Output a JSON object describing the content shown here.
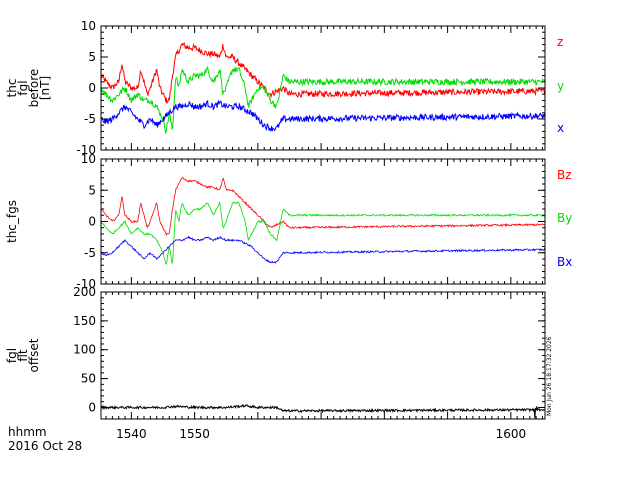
{
  "figure": {
    "x_label_line1": "hhmm",
    "x_label_line2": "2016 Oct 28",
    "timestamp": "Mon Jun 26 18:17:32 2026",
    "x_ticks": [
      "1540",
      "1550",
      "1600"
    ]
  },
  "colors": {
    "x_series": "#0000ff",
    "y_series": "#00dd00",
    "z_series": "#ff0000",
    "offset_series": "#000000",
    "axes": "#000000"
  },
  "chart_data": [
    {
      "type": "line",
      "panel": 1,
      "ylabel_lines": [
        "thc",
        "fgl",
        "before",
        "[nT]"
      ],
      "xlim": [
        1535.2,
        1605.4
      ],
      "ylim": [
        -10,
        10
      ],
      "yticks": [
        -10,
        -5,
        0,
        5,
        10
      ],
      "x_unit": "minutes (hhmm axis)",
      "series": [
        {
          "name": "z",
          "color": "#ff0000",
          "x": [
            1535.2,
            1536,
            1537,
            1538,
            1538.5,
            1539,
            1540,
            1541,
            1541.5,
            1542,
            1542.5,
            1543,
            1544,
            1544.5,
            1545,
            1545.5,
            1546,
            1546.5,
            1547,
            1547.5,
            1548,
            1549,
            1550,
            1551,
            1552,
            1553,
            1554,
            1554.5,
            1555,
            1556,
            1557,
            1558,
            1559,
            1560,
            1561,
            1562,
            1563,
            1564,
            1565,
            1605.4
          ],
          "y": [
            2,
            1,
            0,
            1,
            4,
            1,
            0,
            0,
            3,
            1,
            -1,
            0,
            3,
            0,
            -1,
            -2,
            -2,
            2,
            5,
            6,
            7,
            6.5,
            6.5,
            6,
            5.5,
            5.5,
            5,
            7,
            5,
            5,
            4,
            3,
            2,
            1,
            0,
            -1,
            -0.5,
            0,
            -1,
            -0.5
          ]
        },
        {
          "name": "y",
          "color": "#00dd00",
          "x": [
            1535.2,
            1536,
            1537,
            1538,
            1539,
            1540,
            1541,
            1542,
            1543,
            1544,
            1545,
            1545.5,
            1546,
            1546.5,
            1547,
            1547.5,
            1548,
            1549,
            1550,
            1551,
            1552,
            1553,
            1554,
            1554.5,
            1555,
            1556,
            1557,
            1558,
            1558.5,
            1559,
            1560,
            1561,
            1562,
            1563,
            1564,
            1565,
            1605.4
          ],
          "y": [
            0,
            -1,
            -2,
            -1,
            0,
            -2,
            -1,
            -2,
            -2,
            -3,
            -5,
            -7,
            -4,
            -7,
            2,
            0,
            3,
            1,
            2,
            2,
            3,
            1,
            3,
            -1,
            0,
            3,
            3,
            0,
            -3,
            -2,
            0,
            0,
            -2,
            -3,
            2,
            1,
            1
          ]
        },
        {
          "name": "x",
          "color": "#0000ff",
          "x": [
            1535.2,
            1536,
            1537,
            1538,
            1539,
            1540,
            1541,
            1542,
            1543,
            1544,
            1545,
            1546,
            1547,
            1548,
            1549,
            1550,
            1551,
            1552,
            1553,
            1554,
            1555,
            1556,
            1557,
            1558,
            1559,
            1560,
            1561,
            1562,
            1563,
            1564,
            1565,
            1605.4
          ],
          "y": [
            -5,
            -5.5,
            -5,
            -4,
            -3,
            -4,
            -5,
            -6,
            -5,
            -6,
            -5,
            -4,
            -3,
            -3,
            -2.5,
            -3,
            -3,
            -2.5,
            -3,
            -2.5,
            -3,
            -3,
            -3,
            -3.5,
            -4,
            -5,
            -6,
            -6.5,
            -6.5,
            -5,
            -5,
            -4.5
          ]
        }
      ],
      "legend": [
        "z",
        "y",
        "x"
      ],
      "legend_placement": "right"
    },
    {
      "type": "line",
      "panel": 2,
      "ylabel_lines": [
        "thc_fgs"
      ],
      "xlim": [
        1535.2,
        1605.4
      ],
      "ylim": [
        -10,
        10
      ],
      "yticks": [
        -10,
        -5,
        0,
        5,
        10
      ],
      "series": [
        {
          "name": "Bz",
          "color": "#ff0000",
          "x": [
            1535.2,
            1536,
            1537,
            1538,
            1538.5,
            1539,
            1540,
            1541,
            1541.5,
            1542,
            1542.5,
            1543,
            1544,
            1544.5,
            1545,
            1545.5,
            1546,
            1546.5,
            1547,
            1547.5,
            1548,
            1549,
            1550,
            1551,
            1552,
            1553,
            1554,
            1554.5,
            1555,
            1556,
            1557,
            1558,
            1559,
            1560,
            1561,
            1562,
            1563,
            1564,
            1565,
            1605.4
          ],
          "y": [
            2,
            1,
            0,
            1,
            4,
            1,
            0,
            0,
            3,
            1,
            -1,
            0,
            3,
            0,
            -1,
            -2,
            -2,
            2,
            5,
            6,
            7,
            6.5,
            6.5,
            6,
            5.5,
            5.5,
            5,
            7,
            5,
            5,
            4,
            3,
            2,
            1,
            0,
            -1,
            -0.5,
            0,
            -1,
            -0.5
          ]
        },
        {
          "name": "By",
          "color": "#00dd00",
          "x": [
            1535.2,
            1536,
            1537,
            1538,
            1539,
            1540,
            1541,
            1542,
            1543,
            1544,
            1545,
            1545.5,
            1546,
            1546.5,
            1547,
            1547.5,
            1548,
            1549,
            1550,
            1551,
            1552,
            1553,
            1554,
            1554.5,
            1555,
            1556,
            1557,
            1558,
            1558.5,
            1559,
            1560,
            1561,
            1562,
            1563,
            1564,
            1565,
            1605.4
          ],
          "y": [
            0,
            -1,
            -2,
            -1,
            0,
            -2,
            -1,
            -2,
            -2,
            -3,
            -5,
            -7,
            -4,
            -7,
            2,
            0,
            3,
            1,
            2,
            2,
            3,
            1,
            3,
            -1,
            0,
            3,
            3,
            0,
            -3,
            -2,
            0,
            0,
            -2,
            -3,
            2,
            1,
            1
          ]
        },
        {
          "name": "Bx",
          "color": "#0000ff",
          "x": [
            1535.2,
            1536,
            1537,
            1538,
            1539,
            1540,
            1541,
            1542,
            1543,
            1544,
            1545,
            1546,
            1547,
            1548,
            1549,
            1550,
            1551,
            1552,
            1553,
            1554,
            1555,
            1556,
            1557,
            1558,
            1559,
            1560,
            1561,
            1562,
            1563,
            1564,
            1565,
            1605.4
          ],
          "y": [
            -5,
            -5.5,
            -5,
            -4,
            -3,
            -4,
            -5,
            -6,
            -5,
            -6,
            -5,
            -4,
            -3,
            -3,
            -2.5,
            -3,
            -3,
            -2.5,
            -3,
            -2.5,
            -3,
            -3,
            -3,
            -3.5,
            -4,
            -5,
            -6,
            -6.5,
            -6.5,
            -5,
            -5,
            -4.5
          ]
        }
      ],
      "legend": [
        "Bz",
        "By",
        "Bx"
      ],
      "legend_placement": "right"
    },
    {
      "type": "line",
      "panel": 3,
      "ylabel_lines": [
        "fgl",
        "flt",
        "offset"
      ],
      "xlim": [
        1535.2,
        1605.4
      ],
      "ylim": [
        -20,
        200
      ],
      "yticks": [
        0,
        50,
        100,
        150,
        200
      ],
      "ytick_labels": [
        "0",
        "50",
        "100",
        "150",
        "200"
      ],
      "series": [
        {
          "name": "offset",
          "color": "#000000",
          "x": [
            1535.2,
            1540,
            1545,
            1547,
            1550,
            1555,
            1558,
            1560,
            1563,
            1564,
            1605.4
          ],
          "y": [
            0,
            0,
            0,
            2,
            0,
            0,
            3,
            0,
            0,
            -6,
            -4
          ]
        }
      ],
      "noise_amplitude": 2
    }
  ]
}
